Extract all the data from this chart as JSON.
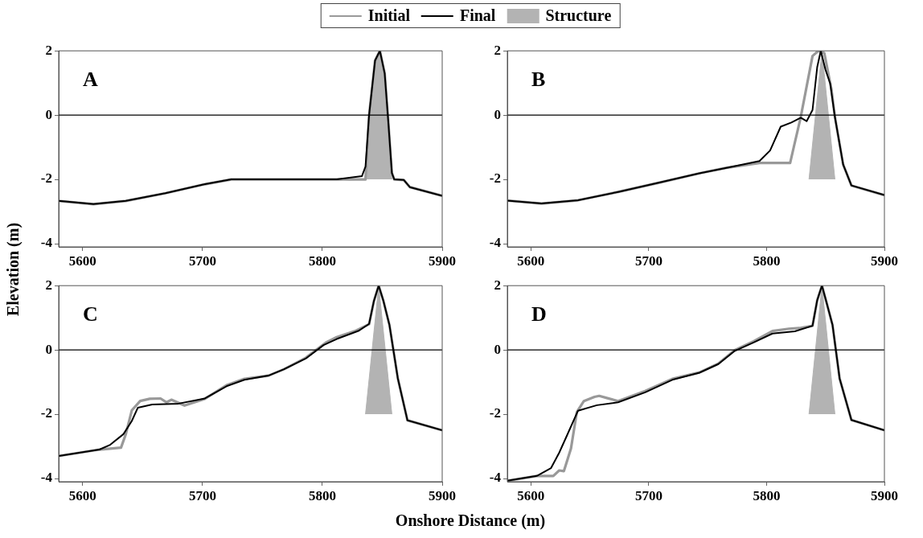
{
  "chart_data": [
    {
      "type": "line",
      "xlabel": "Onshore Distance (m)",
      "ylabel": "Elevation (m)",
      "legend": "top",
      "annotations": [
        "A"
      ],
      "xlim": [
        5580,
        5900
      ],
      "ylim": [
        -4.1,
        2
      ],
      "xticks": [
        5600,
        5700,
        5800,
        5900
      ],
      "yticks": [
        -4,
        -2,
        0,
        2
      ],
      "ref_lines": [
        {
          "axis": "y",
          "value": 0,
          "color": "#000000"
        }
      ],
      "series": [
        {
          "name": "Initial",
          "type": "line",
          "color": "#999999",
          "x": [
            5580,
            5609,
            5636,
            5669,
            5702,
            5724,
            5812,
            5836,
            5839,
            5844,
            5848,
            5852,
            5855,
            5858,
            5860,
            5868,
            5873,
            5900
          ],
          "values": [
            -2.67,
            -2.77,
            -2.67,
            -2.43,
            -2.15,
            -2.0,
            -2.0,
            -2.0,
            0,
            1.7,
            2,
            1.3,
            -0.2,
            -1.8,
            -2.0,
            -2.02,
            -2.24,
            -2.51
          ]
        },
        {
          "name": "Final",
          "type": "line",
          "color": "#000000",
          "x": [
            5580,
            5609,
            5636,
            5669,
            5702,
            5724,
            5812,
            5833,
            5836,
            5839,
            5844,
            5848,
            5852,
            5855,
            5858,
            5860,
            5868,
            5873,
            5900
          ],
          "values": [
            -2.67,
            -2.77,
            -2.67,
            -2.43,
            -2.15,
            -2.0,
            -2.0,
            -1.9,
            -1.6,
            0,
            1.7,
            2,
            1.3,
            -0.2,
            -1.8,
            -2.0,
            -2.02,
            -2.24,
            -2.51
          ]
        },
        {
          "name": "Structure",
          "type": "area",
          "color": "#b3b3b3",
          "x": [
            5837,
            5840,
            5844,
            5848,
            5852,
            5855,
            5858
          ],
          "values": [
            -2,
            0,
            1.7,
            2,
            1.3,
            -0.2,
            -2
          ]
        }
      ]
    },
    {
      "type": "line",
      "annotations": [
        "B"
      ],
      "xlim": [
        5580,
        5900
      ],
      "ylim": [
        -4.1,
        2
      ],
      "xticks": [
        5600,
        5700,
        5800,
        5900
      ],
      "yticks": [
        -4,
        -2,
        0,
        2
      ],
      "ref_lines": [
        {
          "axis": "y",
          "value": 0,
          "color": "#000000"
        }
      ],
      "series": [
        {
          "type": "line",
          "color": "#999999",
          "x": [
            5580,
            5609,
            5640,
            5674,
            5709,
            5743,
            5766,
            5794,
            5820,
            5823,
            5829,
            5839,
            5844,
            5849,
            5855,
            5858,
            5865,
            5872,
            5900
          ],
          "values": [
            -2.66,
            -2.75,
            -2.65,
            -2.39,
            -2.1,
            -1.81,
            -1.64,
            -1.49,
            -1.49,
            -1.01,
            -0.06,
            1.84,
            2,
            1.93,
            0.81,
            -0.06,
            -1.54,
            -2.19,
            -2.49
          ]
        },
        {
          "type": "line",
          "color": "#000000",
          "x": [
            5580,
            5609,
            5640,
            5674,
            5709,
            5743,
            5766,
            5794,
            5803,
            5812,
            5821,
            5829,
            5834,
            5839,
            5843,
            5846,
            5850,
            5854,
            5858,
            5865,
            5872,
            5900
          ],
          "values": [
            -2.66,
            -2.75,
            -2.65,
            -2.39,
            -2.1,
            -1.81,
            -1.64,
            -1.43,
            -1.1,
            -0.36,
            -0.23,
            -0.08,
            -0.19,
            0.16,
            1.5,
            2,
            1.41,
            0.98,
            -0.06,
            -1.54,
            -2.19,
            -2.49
          ]
        },
        {
          "type": "area",
          "color": "#b3b3b3",
          "x": [
            5836,
            5847,
            5858
          ],
          "values": [
            -2,
            2,
            -2
          ]
        }
      ]
    },
    {
      "type": "line",
      "annotations": [
        "C"
      ],
      "xlim": [
        5580,
        5900
      ],
      "ylim": [
        -4.1,
        2
      ],
      "xticks": [
        5600,
        5700,
        5800,
        5900
      ],
      "yticks": [
        -4,
        -2,
        0,
        2
      ],
      "ref_lines": [
        {
          "axis": "y",
          "value": 0,
          "color": "#000000"
        }
      ],
      "series": [
        {
          "type": "line",
          "color": "#999999",
          "x": [
            5580,
            5614,
            5632,
            5636,
            5641,
            5648,
            5656,
            5665,
            5670,
            5674,
            5685,
            5702,
            5720,
            5735,
            5755,
            5768,
            5786,
            5803,
            5812,
            5828,
            5839,
            5843,
            5847,
            5851,
            5856,
            5863,
            5871,
            5900
          ],
          "values": [
            -3.3,
            -3.1,
            -3.04,
            -2.62,
            -1.88,
            -1.59,
            -1.52,
            -1.51,
            -1.63,
            -1.55,
            -1.73,
            -1.52,
            -1.1,
            -0.9,
            -0.8,
            -0.6,
            -0.25,
            0.23,
            0.4,
            0.6,
            0.8,
            1.52,
            2,
            1.52,
            0.77,
            -0.89,
            -2.19,
            -2.5
          ]
        },
        {
          "type": "line",
          "color": "#000000",
          "x": [
            5580,
            5614,
            5623,
            5634,
            5641,
            5646,
            5658,
            5680,
            5702,
            5720,
            5735,
            5755,
            5768,
            5786,
            5801,
            5812,
            5830,
            5839,
            5843,
            5847,
            5851,
            5856,
            5863,
            5871,
            5900
          ],
          "values": [
            -3.3,
            -3.1,
            -2.95,
            -2.62,
            -2.21,
            -1.8,
            -1.7,
            -1.67,
            -1.51,
            -1.13,
            -0.93,
            -0.8,
            -0.6,
            -0.27,
            0.15,
            0.34,
            0.59,
            0.81,
            1.52,
            2,
            1.52,
            0.77,
            -0.89,
            -2.19,
            -2.5
          ]
        },
        {
          "type": "area",
          "color": "#b3b3b3",
          "x": [
            5836,
            5847,
            5858
          ],
          "values": [
            -2,
            2,
            -2
          ]
        }
      ]
    },
    {
      "type": "line",
      "annotations": [
        "D"
      ],
      "xlim": [
        5580,
        5900
      ],
      "ylim": [
        -4.1,
        2
      ],
      "xticks": [
        5600,
        5700,
        5800,
        5900
      ],
      "yticks": [
        -4,
        -2,
        0,
        2
      ],
      "ref_lines": [
        {
          "axis": "y",
          "value": 0,
          "color": "#000000"
        }
      ],
      "series": [
        {
          "type": "line",
          "color": "#999999",
          "x": [
            5580,
            5605,
            5619,
            5624,
            5628,
            5634,
            5639,
            5645,
            5654,
            5658,
            5665,
            5674,
            5697,
            5720,
            5743,
            5759,
            5773,
            5789,
            5805,
            5819,
            5828,
            5839,
            5843,
            5847,
            5851,
            5856,
            5862,
            5872,
            5900
          ],
          "values": [
            -4.07,
            -3.92,
            -3.92,
            -3.75,
            -3.77,
            -3.07,
            -1.93,
            -1.59,
            -1.46,
            -1.43,
            -1.5,
            -1.59,
            -1.28,
            -0.9,
            -0.7,
            -0.43,
            -0.01,
            0.27,
            0.59,
            0.66,
            0.68,
            0.75,
            1.55,
            2,
            1.46,
            0.77,
            -0.89,
            -2.18,
            -2.5
          ]
        },
        {
          "type": "line",
          "color": "#000000",
          "x": [
            5580,
            5605,
            5617,
            5624,
            5631,
            5640,
            5656,
            5674,
            5697,
            5720,
            5743,
            5759,
            5773,
            5789,
            5805,
            5824,
            5839,
            5843,
            5847,
            5851,
            5856,
            5862,
            5872,
            5900
          ],
          "values": [
            -4.07,
            -3.92,
            -3.68,
            -3.2,
            -2.63,
            -1.89,
            -1.72,
            -1.63,
            -1.32,
            -0.93,
            -0.71,
            -0.44,
            -0.03,
            0.23,
            0.51,
            0.58,
            0.75,
            1.55,
            2,
            1.46,
            0.77,
            -0.89,
            -2.18,
            -2.5
          ]
        },
        {
          "type": "area",
          "color": "#b3b3b3",
          "x": [
            5836,
            5847,
            5858
          ],
          "values": [
            -2,
            2,
            -2
          ]
        }
      ]
    }
  ]
}
